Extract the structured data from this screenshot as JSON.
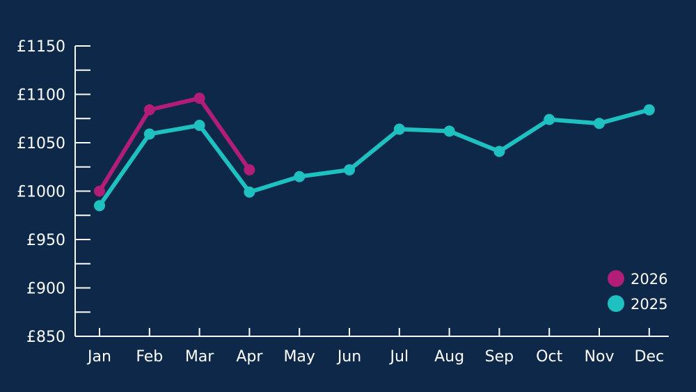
{
  "chart_data": {
    "type": "line",
    "title": "",
    "xlabel": "",
    "ylabel": "",
    "categories": [
      "Jan",
      "Feb",
      "Mar",
      "Apr",
      "May",
      "Jun",
      "Jul",
      "Aug",
      "Sep",
      "Oct",
      "Nov",
      "Dec"
    ],
    "ylim": [
      850,
      1150
    ],
    "y_ticks": [
      850,
      900,
      950,
      1000,
      1050,
      1100,
      1150
    ],
    "y_tick_labels": [
      "£850",
      "£900",
      "£950",
      "£1000",
      "£1050",
      "£1100",
      "£1150"
    ],
    "y_minor_ticks": [
      875,
      925,
      975,
      1025,
      1075,
      1125
    ],
    "grid": false,
    "legend_position": "bottom-right",
    "series": [
      {
        "name": "2026",
        "color": "#b01e78",
        "values": [
          1000,
          1084,
          1096,
          1022,
          null,
          null,
          null,
          null,
          null,
          null,
          null,
          null
        ]
      },
      {
        "name": "2025",
        "color": "#1fc1c0",
        "values": [
          985,
          1059,
          1068,
          999,
          1015,
          1022,
          1064,
          1062,
          1041,
          1074,
          1070,
          1084
        ]
      }
    ]
  },
  "colors": {
    "background": "#0d2848",
    "axis": "#ffffff"
  }
}
